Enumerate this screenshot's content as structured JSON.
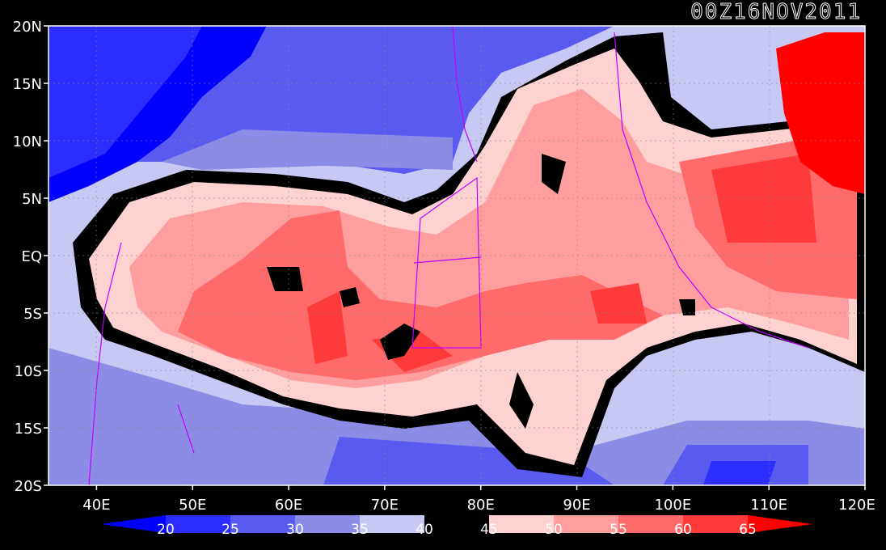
{
  "timestamp": "00Z16NOV2011",
  "map": {
    "x_ticks": [
      "40E",
      "50E",
      "60E",
      "70E",
      "80E",
      "90E",
      "100E",
      "110E",
      "120E"
    ],
    "y_ticks": [
      "20N",
      "15N",
      "10N",
      "5N",
      "EQ",
      "5S",
      "10S",
      "15S",
      "20S"
    ],
    "lon_range": [
      35,
      120
    ],
    "lat_range": [
      -20,
      20
    ]
  },
  "colorbar": {
    "levels": [
      "20",
      "25",
      "30",
      "35",
      "40",
      "45",
      "50",
      "55",
      "60",
      "65"
    ],
    "colors": [
      "#0000ff",
      "#2d2dff",
      "#5a5af0",
      "#8c8ce6",
      "#c8c8f5",
      "#000000",
      "#ffd2d2",
      "#ff9e9e",
      "#ff6a6a",
      "#ff3a3a",
      "#ff0000"
    ]
  }
}
